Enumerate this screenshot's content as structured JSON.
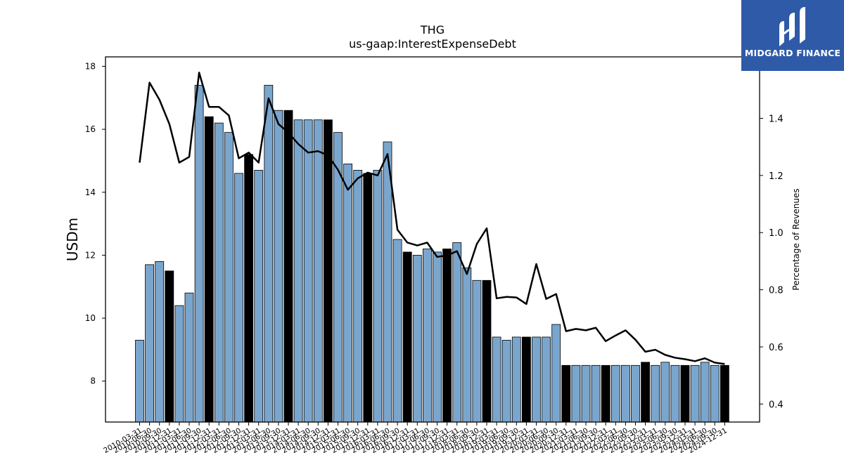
{
  "logo": {
    "text": "MIDGARD FINANCE",
    "icon": "midgard-logo-icon"
  },
  "chart_data": {
    "type": "bar",
    "title": "THG",
    "subtitle": "us-gaap:InterestExpenseDebt",
    "ylabel": "USDm",
    "y2label": "Percentage of Revenues",
    "ylim": [
      6.7,
      18.3
    ],
    "y2lim": [
      0.337,
      1.615
    ],
    "yticks": [
      "8",
      "10",
      "12",
      "14",
      "16",
      "18"
    ],
    "y2ticks": [
      "0.4",
      "0.6",
      "0.8",
      "1.0",
      "1.2",
      "1.4"
    ],
    "colors": {
      "quarter": "#7aa6cd",
      "annual": "#000000",
      "line": "#000000",
      "edge": "#000000"
    },
    "categories": [
      "2010-03-31",
      "2010-06-30",
      "2010-09-30",
      "2010-12-31",
      "2011-03-31",
      "2011-06-30",
      "2011-09-30",
      "2011-12-31",
      "2012-03-31",
      "2012-06-30",
      "2012-09-30",
      "2012-12-31",
      "2013-03-31",
      "2013-06-30",
      "2013-09-30",
      "2013-12-31",
      "2014-03-31",
      "2014-06-30",
      "2014-09-30",
      "2014-12-31",
      "2015-03-31",
      "2015-06-30",
      "2015-09-30",
      "2015-12-31",
      "2016-03-31",
      "2016-06-30",
      "2016-09-30",
      "2016-12-31",
      "2017-03-31",
      "2017-06-30",
      "2017-09-30",
      "2017-12-31",
      "2018-03-31",
      "2018-06-30",
      "2018-09-30",
      "2018-12-31",
      "2019-03-31",
      "2019-06-30",
      "2019-09-30",
      "2019-12-31",
      "2020-03-31",
      "2020-06-30",
      "2020-09-30",
      "2020-12-31",
      "2021-03-31",
      "2021-06-30",
      "2021-09-30",
      "2021-12-31",
      "2022-03-31",
      "2022-06-30",
      "2022-09-30",
      "2022-12-31",
      "2023-03-31",
      "2023-06-30",
      "2023-09-30",
      "2023-12-31",
      "2024-03-31",
      "2024-06-30",
      "2024-09-30",
      "2024-12-31"
    ],
    "series": [
      {
        "kind": "bar",
        "values": [
          9.3,
          11.7,
          11.8,
          11.5,
          10.4,
          10.8,
          17.4,
          16.4,
          16.2,
          15.9,
          14.6,
          15.2,
          14.7,
          17.4,
          16.6,
          16.6,
          16.3,
          16.3,
          16.3,
          16.3,
          15.9,
          14.9,
          14.7,
          14.6,
          14.7,
          15.6,
          12.5,
          12.1,
          12.0,
          12.2,
          12.1,
          12.2,
          12.4,
          11.6,
          11.2,
          11.2,
          9.4,
          9.3,
          9.4,
          9.4,
          9.4,
          9.4,
          9.8,
          8.5,
          8.5,
          8.5,
          8.5,
          8.5,
          8.5,
          8.5,
          8.5,
          8.6,
          8.5,
          8.6,
          8.5,
          8.5,
          8.5,
          8.6,
          8.5,
          8.5
        ],
        "is_annual": [
          0,
          0,
          0,
          1,
          0,
          0,
          0,
          1,
          0,
          0,
          0,
          1,
          0,
          0,
          0,
          1,
          0,
          0,
          0,
          1,
          0,
          0,
          0,
          1,
          0,
          0,
          0,
          1,
          0,
          0,
          0,
          1,
          0,
          0,
          0,
          1,
          0,
          0,
          0,
          1,
          0,
          0,
          0,
          1,
          0,
          0,
          0,
          1,
          0,
          0,
          0,
          1,
          0,
          0,
          0,
          1,
          0,
          0,
          0,
          1
        ]
      },
      {
        "kind": "line",
        "axis": "right",
        "values": [
          1.245,
          1.525,
          1.465,
          1.38,
          1.245,
          1.265,
          1.56,
          1.44,
          1.44,
          1.41,
          1.26,
          1.28,
          1.245,
          1.47,
          1.38,
          1.35,
          1.31,
          1.28,
          1.285,
          1.27,
          1.22,
          1.15,
          1.19,
          1.21,
          1.2,
          1.275,
          1.01,
          0.965,
          0.955,
          0.965,
          0.915,
          0.92,
          0.935,
          0.855,
          0.96,
          1.015,
          0.77,
          0.775,
          0.773,
          0.75,
          0.89,
          0.768,
          0.785,
          0.655,
          0.663,
          0.658,
          0.667,
          0.62,
          0.64,
          0.658,
          0.625,
          0.583,
          0.59,
          0.572,
          0.562,
          0.557,
          0.55,
          0.56,
          0.545,
          0.54
        ]
      }
    ]
  }
}
